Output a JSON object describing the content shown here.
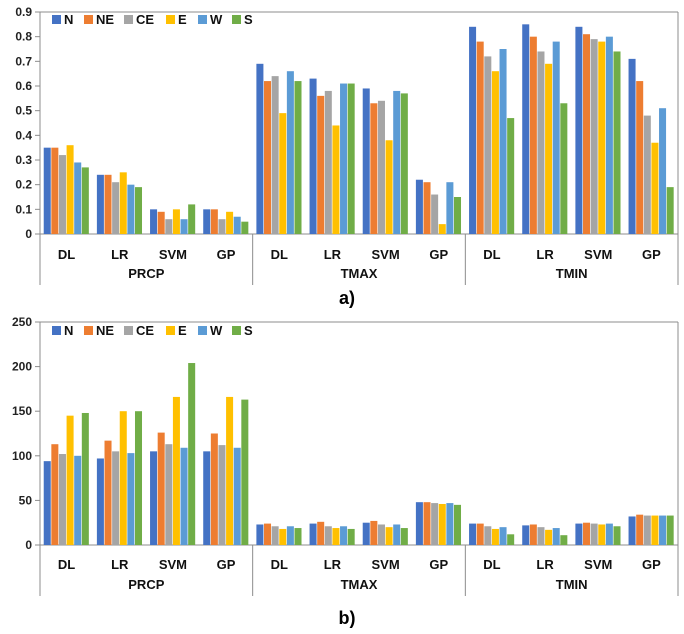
{
  "colors": {
    "N": "#4472C4",
    "NE": "#ED7D31",
    "CE": "#A5A5A5",
    "E": "#FFC000",
    "W": "#5B9BD5",
    "S": "#70AD47",
    "axis": "#8c8c8c"
  },
  "chart_data": [
    {
      "type": "bar",
      "caption": "a)",
      "ylim": [
        0,
        0.9
      ],
      "yticks": [
        "0",
        "0.1",
        "0.2",
        "0.3",
        "0.4",
        "0.5",
        "0.6",
        "0.7",
        "0.8",
        "0.9"
      ],
      "ytick_values": [
        0,
        0.1,
        0.2,
        0.3,
        0.4,
        0.5,
        0.6,
        0.7,
        0.8,
        0.9
      ],
      "groups": [
        "PRCP",
        "TMAX",
        "TMIN"
      ],
      "categories": [
        "DL",
        "LR",
        "SVM",
        "GP"
      ],
      "legend": [
        "N",
        "NE",
        "CE",
        "E",
        "W",
        "S"
      ],
      "values": [
        [
          [
            0.35,
            0.35,
            0.32,
            0.36,
            0.29,
            0.27
          ],
          [
            0.24,
            0.24,
            0.21,
            0.25,
            0.2,
            0.19
          ],
          [
            0.1,
            0.09,
            0.06,
            0.1,
            0.06,
            0.12
          ],
          [
            0.1,
            0.1,
            0.06,
            0.09,
            0.07,
            0.05
          ]
        ],
        [
          [
            0.69,
            0.62,
            0.64,
            0.49,
            0.66,
            0.62
          ],
          [
            0.63,
            0.56,
            0.58,
            0.44,
            0.61,
            0.61
          ],
          [
            0.59,
            0.53,
            0.54,
            0.38,
            0.58,
            0.57
          ],
          [
            0.22,
            0.21,
            0.16,
            0.04,
            0.21,
            0.15
          ]
        ],
        [
          [
            0.84,
            0.78,
            0.72,
            0.66,
            0.75,
            0.47
          ],
          [
            0.85,
            0.8,
            0.74,
            0.69,
            0.78,
            0.53
          ],
          [
            0.84,
            0.81,
            0.79,
            0.78,
            0.8,
            0.74
          ],
          [
            0.71,
            0.62,
            0.48,
            0.37,
            0.51,
            0.19
          ]
        ]
      ]
    },
    {
      "type": "bar",
      "caption": "b)",
      "ylim": [
        0,
        250
      ],
      "yticks": [
        "0",
        "50",
        "100",
        "150",
        "200",
        "250"
      ],
      "ytick_values": [
        0,
        50,
        100,
        150,
        200,
        250
      ],
      "groups": [
        "PRCP",
        "TMAX",
        "TMIN"
      ],
      "categories": [
        "DL",
        "LR",
        "SVM",
        "GP"
      ],
      "legend": [
        "N",
        "NE",
        "CE",
        "E",
        "W",
        "S"
      ],
      "values": [
        [
          [
            94,
            113,
            102,
            145,
            100,
            148
          ],
          [
            97,
            117,
            105,
            150,
            103,
            150
          ],
          [
            105,
            126,
            113,
            166,
            109,
            204
          ],
          [
            105,
            125,
            112,
            166,
            109,
            163
          ]
        ],
        [
          [
            23,
            24,
            21,
            18,
            21,
            19
          ],
          [
            24,
            26,
            21,
            19,
            21,
            18
          ],
          [
            25,
            27,
            23,
            20,
            23,
            19
          ],
          [
            48,
            48,
            47,
            46,
            47,
            45
          ]
        ],
        [
          [
            24,
            24,
            21,
            18,
            20,
            12
          ],
          [
            22,
            23,
            20,
            17,
            19,
            11
          ],
          [
            24,
            25,
            24,
            23,
            24,
            21
          ],
          [
            32,
            34,
            33,
            33,
            33,
            33
          ]
        ]
      ]
    }
  ]
}
